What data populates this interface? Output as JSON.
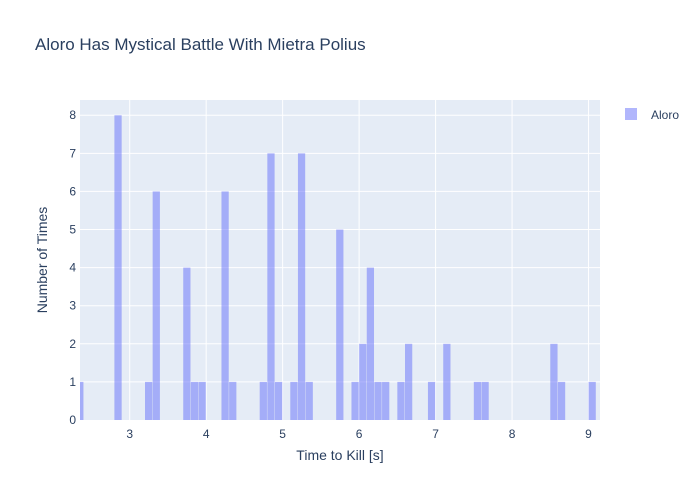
{
  "chart_data": {
    "type": "bar",
    "title": "Aloro Has Mystical Battle With Mietra Polius",
    "xlabel": "Time to Kill [s]",
    "ylabel": "Number of Times",
    "xlim": [
      2.35,
      9.15
    ],
    "ylim": [
      0,
      8.4
    ],
    "x_ticks": [
      3,
      4,
      5,
      6,
      7,
      8,
      9
    ],
    "y_ticks": [
      0,
      1,
      2,
      3,
      4,
      5,
      6,
      7,
      8
    ],
    "bin_width": 0.1,
    "legend": {
      "position": "top-right",
      "entries": [
        "Aloro"
      ]
    },
    "grid": true,
    "colors": {
      "bar": "#636efa",
      "plot_bg": "#e5ecf6",
      "text": "#2a3f5f"
    },
    "series": [
      {
        "name": "Aloro",
        "bins": [
          {
            "x0": 2.3,
            "count": 1
          },
          {
            "x0": 2.8,
            "count": 8
          },
          {
            "x0": 3.2,
            "count": 1
          },
          {
            "x0": 3.3,
            "count": 6
          },
          {
            "x0": 3.7,
            "count": 4
          },
          {
            "x0": 3.8,
            "count": 1
          },
          {
            "x0": 3.9,
            "count": 1
          },
          {
            "x0": 4.2,
            "count": 6
          },
          {
            "x0": 4.3,
            "count": 1
          },
          {
            "x0": 4.7,
            "count": 1
          },
          {
            "x0": 4.8,
            "count": 7
          },
          {
            "x0": 4.9,
            "count": 1
          },
          {
            "x0": 5.1,
            "count": 1
          },
          {
            "x0": 5.2,
            "count": 7
          },
          {
            "x0": 5.3,
            "count": 1
          },
          {
            "x0": 5.7,
            "count": 5
          },
          {
            "x0": 5.9,
            "count": 1
          },
          {
            "x0": 6.0,
            "count": 2
          },
          {
            "x0": 6.1,
            "count": 4
          },
          {
            "x0": 6.2,
            "count": 1
          },
          {
            "x0": 6.3,
            "count": 1
          },
          {
            "x0": 6.5,
            "count": 1
          },
          {
            "x0": 6.6,
            "count": 2
          },
          {
            "x0": 6.9,
            "count": 1
          },
          {
            "x0": 7.1,
            "count": 2
          },
          {
            "x0": 7.5,
            "count": 1
          },
          {
            "x0": 7.6,
            "count": 1
          },
          {
            "x0": 8.5,
            "count": 2
          },
          {
            "x0": 8.6,
            "count": 1
          },
          {
            "x0": 9.0,
            "count": 1
          }
        ]
      }
    ]
  }
}
